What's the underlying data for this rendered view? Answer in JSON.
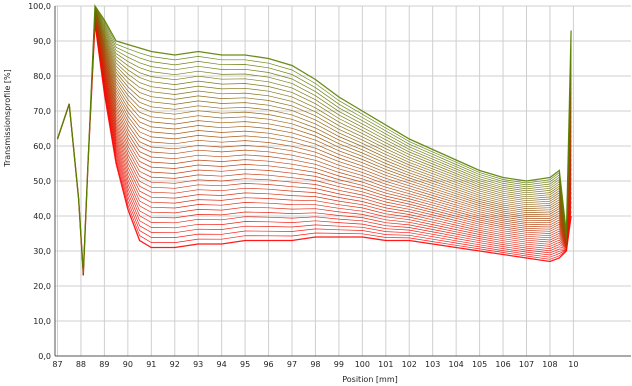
{
  "chart_data": {
    "type": "line",
    "xlabel": "Position [mm]",
    "ylabel": "Transmissionsprofile [%]",
    "xlim": [
      87,
      109
    ],
    "ylim": [
      0,
      100
    ],
    "x_ticks": [
      "87",
      "88",
      "89",
      "90",
      "91",
      "92",
      "93",
      "94",
      "95",
      "96",
      "97",
      "98",
      "99",
      "100",
      "101",
      "102",
      "103",
      "104",
      "105",
      "106",
      "107",
      "108",
      "10"
    ],
    "y_ticks": [
      "0,0",
      "10,0",
      "20,0",
      "30,0",
      "40,0",
      "50,0",
      "60,0",
      "70,0",
      "80,0",
      "90,0",
      "100,0"
    ],
    "grid": true,
    "legend": "none",
    "profile_count": 40,
    "colors": {
      "first_profile": "#ff0000",
      "last_profile": "#5a7f00",
      "axis": "#555555",
      "grid": "#cfcfcf"
    },
    "series": [
      {
        "values": [
          [
            87.0,
            62
          ],
          [
            87.5,
            72
          ],
          [
            87.9,
            45
          ],
          [
            88.1,
            24
          ],
          [
            88.3,
            55
          ],
          [
            88.6,
            100
          ],
          [
            89.0,
            96
          ],
          [
            89.5,
            90
          ],
          [
            90.0,
            89
          ],
          [
            91.0,
            87
          ],
          [
            92.0,
            86
          ],
          [
            93.0,
            87
          ],
          [
            94.0,
            86
          ],
          [
            95.0,
            86
          ],
          [
            96.0,
            85
          ],
          [
            97.0,
            83
          ],
          [
            98.0,
            79
          ],
          [
            99.0,
            74
          ],
          [
            100.0,
            70
          ],
          [
            101.0,
            66
          ],
          [
            102.0,
            62
          ],
          [
            103.0,
            59
          ],
          [
            104.0,
            56
          ],
          [
            105.0,
            53
          ],
          [
            106.0,
            51
          ],
          [
            107.0,
            50
          ],
          [
            108.0,
            51
          ],
          [
            108.4,
            53
          ],
          [
            108.7,
            35
          ],
          [
            108.9,
            93
          ]
        ]
      },
      {
        "values": [
          [
            87.0,
            62
          ],
          [
            87.5,
            72
          ],
          [
            87.9,
            45
          ],
          [
            88.1,
            23
          ],
          [
            88.3,
            55
          ],
          [
            88.6,
            95
          ],
          [
            89.0,
            75
          ],
          [
            89.5,
            55
          ],
          [
            90.0,
            42
          ],
          [
            90.5,
            33
          ],
          [
            91.0,
            31
          ],
          [
            92.0,
            31
          ],
          [
            93.0,
            32
          ],
          [
            94.0,
            32
          ],
          [
            95.0,
            33
          ],
          [
            96.0,
            33
          ],
          [
            97.0,
            33
          ],
          [
            98.0,
            34
          ],
          [
            99.0,
            34
          ],
          [
            100.0,
            34
          ],
          [
            101.0,
            33
          ],
          [
            102.0,
            33
          ],
          [
            103.0,
            32
          ],
          [
            104.0,
            31
          ],
          [
            105.0,
            30
          ],
          [
            106.0,
            29
          ],
          [
            107.0,
            28
          ],
          [
            108.0,
            27
          ],
          [
            108.4,
            28
          ],
          [
            108.7,
            30
          ],
          [
            108.9,
            40
          ]
        ]
      }
    ]
  }
}
